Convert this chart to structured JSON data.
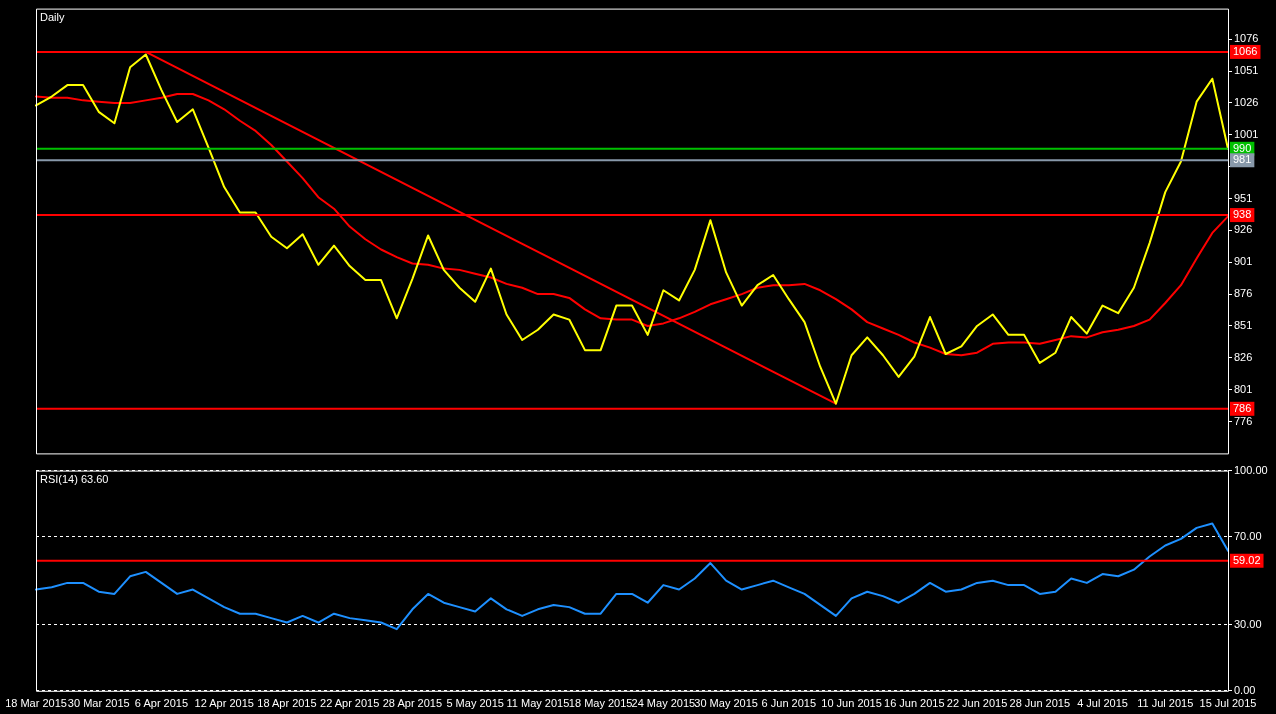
{
  "chart_data": [
    {
      "type": "line",
      "title": "Daily",
      "categories": [
        null,
        null,
        null,
        null,
        null,
        null,
        null,
        null,
        null,
        null,
        null,
        null,
        null,
        null,
        null,
        null,
        null,
        null,
        null,
        null,
        null,
        null,
        null,
        null,
        null,
        null,
        null,
        null,
        null,
        null,
        null,
        null,
        null,
        null,
        null,
        null,
        null,
        null,
        null,
        null,
        null,
        null,
        null,
        null,
        null,
        null,
        null,
        null,
        null,
        null,
        null,
        null,
        null,
        null,
        null,
        null,
        null,
        null,
        null,
        null,
        null,
        null,
        null,
        null,
        null,
        null,
        null,
        null,
        null,
        null,
        null,
        null,
        null,
        null,
        null,
        null,
        null
      ],
      "series": [
        {
          "color": "#ffff00",
          "values": [
            1024,
            1031,
            1040,
            1040,
            1019,
            1010,
            1054,
            1064,
            1036,
            1011,
            1021,
            991,
            960,
            940,
            940,
            921,
            912,
            923,
            899,
            914,
            898,
            887,
            887,
            857,
            888,
            922,
            895,
            881,
            870,
            896,
            860,
            840,
            848,
            860,
            856,
            832,
            832,
            867,
            867,
            844,
            879,
            871,
            895,
            934,
            893,
            867,
            883,
            891,
            872,
            854,
            819,
            790,
            828,
            842,
            828,
            811,
            827,
            858,
            829,
            835,
            851,
            860,
            844,
            844,
            822,
            830,
            858,
            845,
            867,
            861,
            881,
            916,
            956,
            980,
            1027,
            1045,
            990
          ]
        },
        {
          "color": "#ff0000",
          "values": [
            1031,
            1030,
            1030,
            1028,
            1027,
            1026,
            1026,
            1028,
            1030,
            1033,
            1033,
            1028,
            1021,
            1012,
            1004,
            993,
            980,
            967,
            952,
            943,
            929,
            919,
            911,
            905,
            900,
            899,
            896,
            895,
            892,
            889,
            884,
            881,
            876,
            876,
            873,
            864,
            857,
            856,
            856,
            851,
            853,
            857,
            862,
            868,
            872,
            876,
            881,
            883,
            883,
            884,
            879,
            872,
            864,
            854,
            849,
            844,
            838,
            834,
            829,
            828,
            830,
            837,
            838,
            838,
            837,
            840,
            843,
            842,
            846,
            848,
            851,
            856,
            869,
            883,
            904,
            924,
            937
          ]
        },
        {
          "type": "line",
          "color": "#ff0000",
          "values": [
            null,
            null,
            null,
            null,
            null,
            null,
            null,
            1066,
            null,
            null,
            null,
            null,
            null,
            null,
            null,
            null,
            null,
            null,
            null,
            null,
            null,
            null,
            null,
            null,
            null,
            null,
            null,
            null,
            null,
            null,
            null,
            null,
            null,
            null,
            null,
            null,
            null,
            null,
            null,
            null,
            null,
            null,
            null,
            null,
            null,
            null,
            null,
            null,
            null,
            null,
            null,
            790,
            null,
            null,
            null,
            null,
            null,
            null,
            null,
            null,
            null,
            null,
            null,
            null,
            null,
            null,
            null,
            null,
            null,
            null,
            null,
            null,
            null,
            null,
            null,
            null,
            null
          ]
        }
      ],
      "ylim": [
        751,
        1100
      ],
      "yticks": [
        776,
        801,
        826,
        851,
        876,
        901,
        926,
        951,
        {
          "value": 976,
          "label": null
        },
        1001,
        1026,
        1051,
        1076
      ],
      "ref_lines": [
        {
          "axis": "y",
          "value": 1066,
          "label": "1066",
          "color": "#ff0000"
        },
        {
          "axis": "y",
          "value": 938,
          "label": "938",
          "color": "#ff0000"
        },
        {
          "axis": "y",
          "value": 786,
          "label": "786",
          "color": "#ff0000"
        },
        {
          "axis": "y",
          "value": 990,
          "label": "990",
          "color": "#00c000"
        },
        {
          "axis": "y",
          "value": 981,
          "label": "981",
          "color": "#8899aa"
        }
      ],
      "grid": false,
      "tick_labels": "y",
      "marker": "none",
      "line_style": "solid"
    },
    {
      "type": "line",
      "title": "RSI(14) 63.60",
      "categories": [
        "18 Mar 2015",
        null,
        null,
        null,
        "30 Mar 2015",
        null,
        null,
        null,
        "6 Apr 2015",
        null,
        null,
        null,
        "12 Apr 2015",
        null,
        null,
        null,
        "18 Apr 2015",
        null,
        null,
        null,
        "22 Apr 2015",
        null,
        null,
        null,
        "28 Apr 2015",
        null,
        null,
        null,
        "5 May 2015",
        null,
        null,
        null,
        "11 May 2015",
        null,
        null,
        null,
        "18 May 2015",
        null,
        null,
        null,
        "24 May 2015",
        null,
        null,
        null,
        "30 May 2015",
        null,
        null,
        null,
        "6 Jun 2015",
        null,
        null,
        null,
        "10 Jun 2015",
        null,
        null,
        null,
        "16 Jun 2015",
        null,
        null,
        null,
        "22 Jun 2015",
        null,
        null,
        null,
        "28 Jun 2015",
        null,
        null,
        null,
        "4 Jul 2015",
        null,
        null,
        null,
        "11 Jul 2015",
        null,
        null,
        null,
        "15 Jul 2015"
      ],
      "series": [
        {
          "color": "#1e90ff",
          "values": [
            46,
            47,
            49,
            49,
            45,
            44,
            52,
            54,
            49,
            44,
            46,
            42,
            38,
            35,
            35,
            33,
            31,
            34,
            31,
            35,
            33,
            32,
            31,
            28,
            37,
            44,
            40,
            38,
            36,
            42,
            37,
            34,
            37,
            39,
            38,
            35,
            35,
            44,
            44,
            40,
            48,
            46,
            51,
            58,
            50,
            46,
            48,
            50,
            47,
            44,
            39,
            34,
            42,
            45,
            43,
            40,
            44,
            49,
            45,
            46,
            49,
            50,
            48,
            48,
            44,
            45,
            51,
            49,
            53,
            52,
            55,
            61,
            66,
            69,
            74,
            76,
            63.6
          ]
        }
      ],
      "ylim": [
        0,
        100
      ],
      "yticks": [
        {
          "value": 0,
          "label": "0.00"
        },
        {
          "value": 30,
          "label": "30.00"
        },
        {
          "value": 70,
          "label": "70.00"
        },
        {
          "value": 100,
          "label": "100.00"
        }
      ],
      "ref_lines": [
        {
          "axis": "y",
          "value": 59.02,
          "label": "59.02",
          "color": "#ff0000"
        }
      ],
      "grid": "y",
      "marker": "none",
      "line_style": "solid"
    }
  ]
}
